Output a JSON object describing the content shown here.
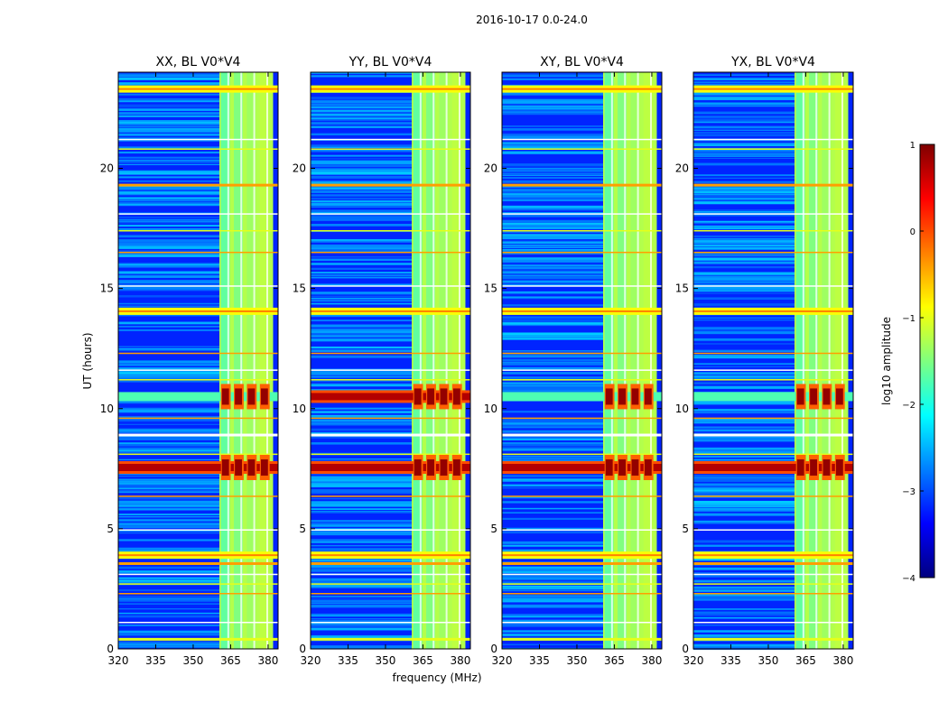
{
  "chart_data": {
    "type": "heatmap",
    "suptitle": "2016-10-17 0.0-24.0",
    "panels": [
      {
        "title": "XX, BL V0*V4",
        "pol": "XX"
      },
      {
        "title": "YY, BL V0*V4",
        "pol": "YY"
      },
      {
        "title": "XY, BL V0*V4",
        "pol": "XY"
      },
      {
        "title": "YX, BL V0*V4",
        "pol": "YX"
      }
    ],
    "xlabel": "frequency (MHz)",
    "ylabel": "UT (hours)",
    "xlim": [
      320,
      384
    ],
    "ylim": [
      0,
      24
    ],
    "xticks": [
      320,
      335,
      350,
      365,
      380
    ],
    "yticks": [
      0,
      5,
      10,
      15,
      20
    ],
    "colorbar": {
      "label": "log10 amplitude",
      "ticks": [
        1,
        0,
        -1,
        -2,
        -3,
        -4
      ],
      "range": [
        -4,
        1
      ],
      "colormap": "jet",
      "colors": [
        "#00007f",
        "#0000ff",
        "#007fff",
        "#00ffff",
        "#7fff7f",
        "#ffff00",
        "#ff7f00",
        "#ff0000",
        "#7f0000"
      ]
    },
    "band_bright_mhz": [
      360.5,
      382
    ],
    "rfi_lines_ut": [
      0.4,
      1.1,
      2.3,
      2.7,
      3.1,
      3.55,
      3.9,
      4.95,
      6.35,
      8.1,
      8.9,
      9.6,
      11.2,
      11.6,
      12.3,
      14.05,
      15.1,
      16.5,
      17.4,
      18.1,
      19.3,
      20.8,
      21.2,
      23.3
    ],
    "strong_events_ut": [
      7.55,
      10.5
    ]
  }
}
